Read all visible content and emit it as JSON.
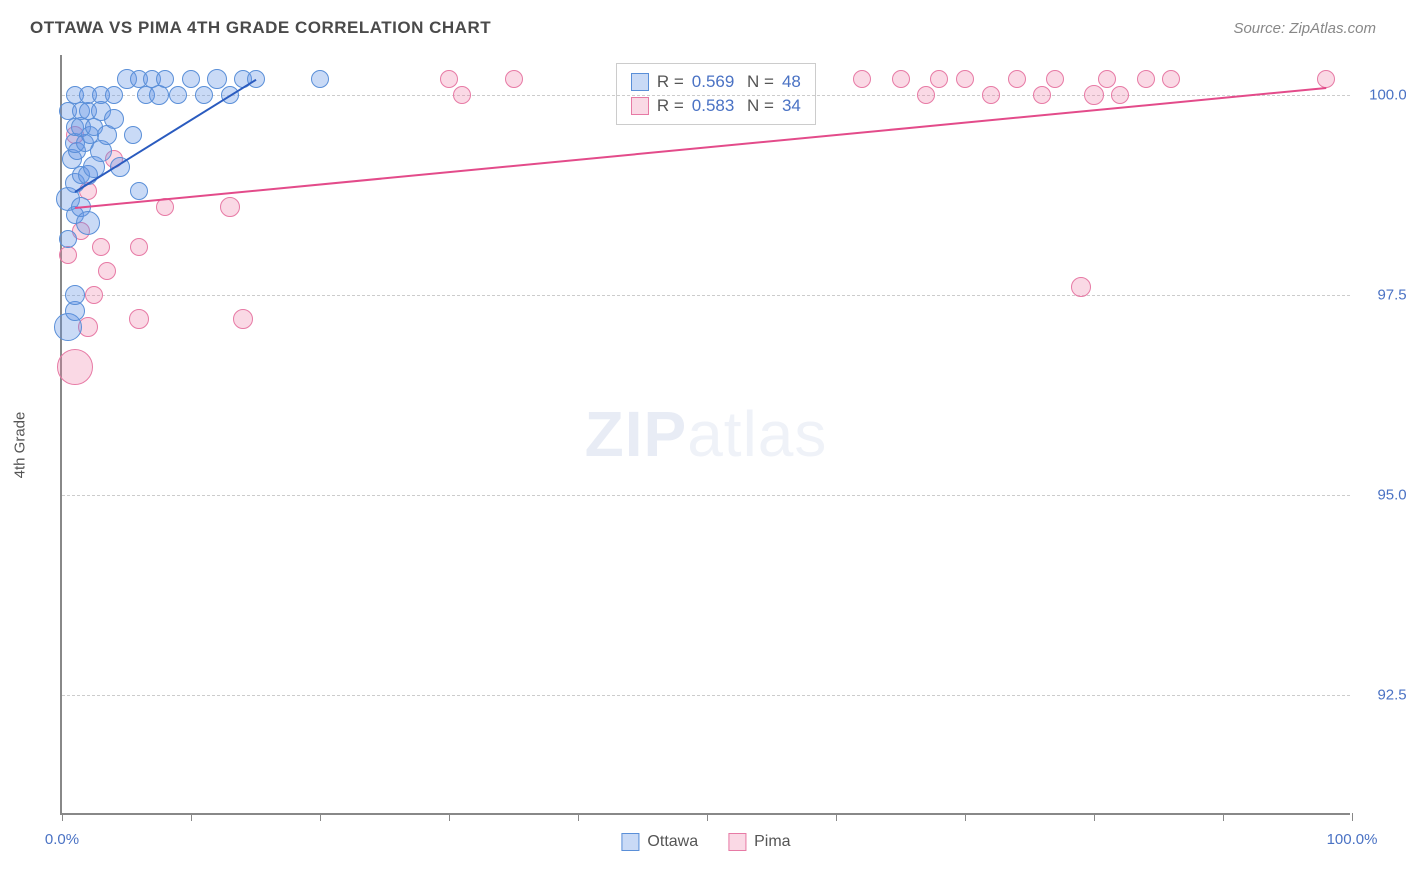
{
  "header": {
    "title": "OTTAWA VS PIMA 4TH GRADE CORRELATION CHART",
    "source": "Source: ZipAtlas.com"
  },
  "watermark": {
    "bold": "ZIP",
    "rest": "atlas"
  },
  "axes": {
    "y_label": "4th Grade",
    "x_min": 0,
    "x_max": 100,
    "y_min": 91.0,
    "y_max": 100.5,
    "y_ticks": [
      {
        "v": 92.5,
        "label": "92.5%"
      },
      {
        "v": 95.0,
        "label": "95.0%"
      },
      {
        "v": 97.5,
        "label": "97.5%"
      },
      {
        "v": 100.0,
        "label": "100.0%"
      }
    ],
    "x_ticks": [
      0,
      10,
      20,
      30,
      40,
      50,
      60,
      70,
      80,
      90,
      100
    ],
    "x_labels": [
      {
        "v": 0,
        "label": "0.0%"
      },
      {
        "v": 100,
        "label": "100.0%"
      }
    ]
  },
  "colors": {
    "ottawa_fill": "rgba(100,150,230,0.35)",
    "ottawa_stroke": "#5a8fd8",
    "ottawa_line": "#2a5bbf",
    "pima_fill": "rgba(240,130,170,0.30)",
    "pima_stroke": "#e77aa5",
    "pima_line": "#e34b8a",
    "grid": "#cccccc",
    "axis": "#888888",
    "tick_text": "#4a72c4"
  },
  "stats": {
    "box_left_pct": 43,
    "box_top_pct": 1,
    "ottawa": {
      "R": "0.569",
      "N": "48"
    },
    "pima": {
      "R": "0.583",
      "N": "34"
    }
  },
  "legend": {
    "ottawa": "Ottawa",
    "pima": "Pima"
  },
  "series": {
    "ottawa": {
      "trend": {
        "x1": 1,
        "y1": 98.8,
        "x2": 15,
        "y2": 100.2
      },
      "points": [
        {
          "x": 0.5,
          "y": 97.1,
          "r": 14
        },
        {
          "x": 1,
          "y": 97.3,
          "r": 10
        },
        {
          "x": 1,
          "y": 97.5,
          "r": 10
        },
        {
          "x": 0.5,
          "y": 98.2,
          "r": 9
        },
        {
          "x": 1,
          "y": 98.5,
          "r": 9
        },
        {
          "x": 0.5,
          "y": 98.7,
          "r": 12
        },
        {
          "x": 1.5,
          "y": 98.6,
          "r": 10
        },
        {
          "x": 2,
          "y": 98.4,
          "r": 12
        },
        {
          "x": 1,
          "y": 98.9,
          "r": 10
        },
        {
          "x": 1.5,
          "y": 99.0,
          "r": 9
        },
        {
          "x": 2,
          "y": 99.0,
          "r": 10
        },
        {
          "x": 0.8,
          "y": 99.2,
          "r": 10
        },
        {
          "x": 1.2,
          "y": 99.3,
          "r": 9
        },
        {
          "x": 2.5,
          "y": 99.1,
          "r": 11
        },
        {
          "x": 1,
          "y": 99.4,
          "r": 10
        },
        {
          "x": 1.8,
          "y": 99.4,
          "r": 9
        },
        {
          "x": 2.2,
          "y": 99.5,
          "r": 9
        },
        {
          "x": 3,
          "y": 99.3,
          "r": 11
        },
        {
          "x": 1,
          "y": 99.6,
          "r": 9
        },
        {
          "x": 1.5,
          "y": 99.6,
          "r": 10
        },
        {
          "x": 2.5,
          "y": 99.6,
          "r": 9
        },
        {
          "x": 3.5,
          "y": 99.5,
          "r": 10
        },
        {
          "x": 0.5,
          "y": 99.8,
          "r": 9
        },
        {
          "x": 1.5,
          "y": 99.8,
          "r": 9
        },
        {
          "x": 2,
          "y": 99.8,
          "r": 9
        },
        {
          "x": 3,
          "y": 99.8,
          "r": 10
        },
        {
          "x": 4,
          "y": 99.7,
          "r": 10
        },
        {
          "x": 1,
          "y": 100.0,
          "r": 9
        },
        {
          "x": 2,
          "y": 100.0,
          "r": 9
        },
        {
          "x": 3,
          "y": 100.0,
          "r": 9
        },
        {
          "x": 4,
          "y": 100.0,
          "r": 9
        },
        {
          "x": 5,
          "y": 100.2,
          "r": 10
        },
        {
          "x": 6,
          "y": 100.2,
          "r": 9
        },
        {
          "x": 6.5,
          "y": 100.0,
          "r": 9
        },
        {
          "x": 7,
          "y": 100.2,
          "r": 9
        },
        {
          "x": 7.5,
          "y": 100.0,
          "r": 10
        },
        {
          "x": 8,
          "y": 100.2,
          "r": 9
        },
        {
          "x": 9,
          "y": 100.0,
          "r": 9
        },
        {
          "x": 10,
          "y": 100.2,
          "r": 9
        },
        {
          "x": 11,
          "y": 100.0,
          "r": 9
        },
        {
          "x": 12,
          "y": 100.2,
          "r": 10
        },
        {
          "x": 13,
          "y": 100.0,
          "r": 9
        },
        {
          "x": 14,
          "y": 100.2,
          "r": 9
        },
        {
          "x": 15,
          "y": 100.2,
          "r": 9
        },
        {
          "x": 20,
          "y": 100.2,
          "r": 9
        },
        {
          "x": 4.5,
          "y": 99.1,
          "r": 10
        },
        {
          "x": 5.5,
          "y": 99.5,
          "r": 9
        },
        {
          "x": 6,
          "y": 98.8,
          "r": 9
        }
      ]
    },
    "pima": {
      "trend": {
        "x1": 1,
        "y1": 98.6,
        "x2": 98,
        "y2": 100.1
      },
      "points": [
        {
          "x": 1,
          "y": 96.6,
          "r": 18
        },
        {
          "x": 2,
          "y": 97.1,
          "r": 10
        },
        {
          "x": 2.5,
          "y": 97.5,
          "r": 9
        },
        {
          "x": 6,
          "y": 97.2,
          "r": 10
        },
        {
          "x": 14,
          "y": 97.2,
          "r": 10
        },
        {
          "x": 0.5,
          "y": 98.0,
          "r": 9
        },
        {
          "x": 1.5,
          "y": 98.3,
          "r": 9
        },
        {
          "x": 3,
          "y": 98.1,
          "r": 9
        },
        {
          "x": 8,
          "y": 98.6,
          "r": 9
        },
        {
          "x": 13,
          "y": 98.6,
          "r": 10
        },
        {
          "x": 2,
          "y": 98.8,
          "r": 9
        },
        {
          "x": 1,
          "y": 99.5,
          "r": 9
        },
        {
          "x": 4,
          "y": 99.2,
          "r": 9
        },
        {
          "x": 6,
          "y": 98.1,
          "r": 9
        },
        {
          "x": 30,
          "y": 100.2,
          "r": 9
        },
        {
          "x": 31,
          "y": 100.0,
          "r": 9
        },
        {
          "x": 35,
          "y": 100.2,
          "r": 9
        },
        {
          "x": 62,
          "y": 100.2,
          "r": 9
        },
        {
          "x": 65,
          "y": 100.2,
          "r": 9
        },
        {
          "x": 67,
          "y": 100.0,
          "r": 9
        },
        {
          "x": 70,
          "y": 100.2,
          "r": 9
        },
        {
          "x": 72,
          "y": 100.0,
          "r": 9
        },
        {
          "x": 74,
          "y": 100.2,
          "r": 9
        },
        {
          "x": 76,
          "y": 100.0,
          "r": 9
        },
        {
          "x": 77,
          "y": 100.2,
          "r": 9
        },
        {
          "x": 80,
          "y": 100.0,
          "r": 10
        },
        {
          "x": 81,
          "y": 100.2,
          "r": 9
        },
        {
          "x": 82,
          "y": 100.0,
          "r": 9
        },
        {
          "x": 86,
          "y": 100.2,
          "r": 9
        },
        {
          "x": 98,
          "y": 100.2,
          "r": 9
        },
        {
          "x": 79,
          "y": 97.6,
          "r": 10
        },
        {
          "x": 84,
          "y": 100.2,
          "r": 9
        },
        {
          "x": 68,
          "y": 100.2,
          "r": 9
        },
        {
          "x": 3.5,
          "y": 97.8,
          "r": 9
        }
      ]
    }
  }
}
